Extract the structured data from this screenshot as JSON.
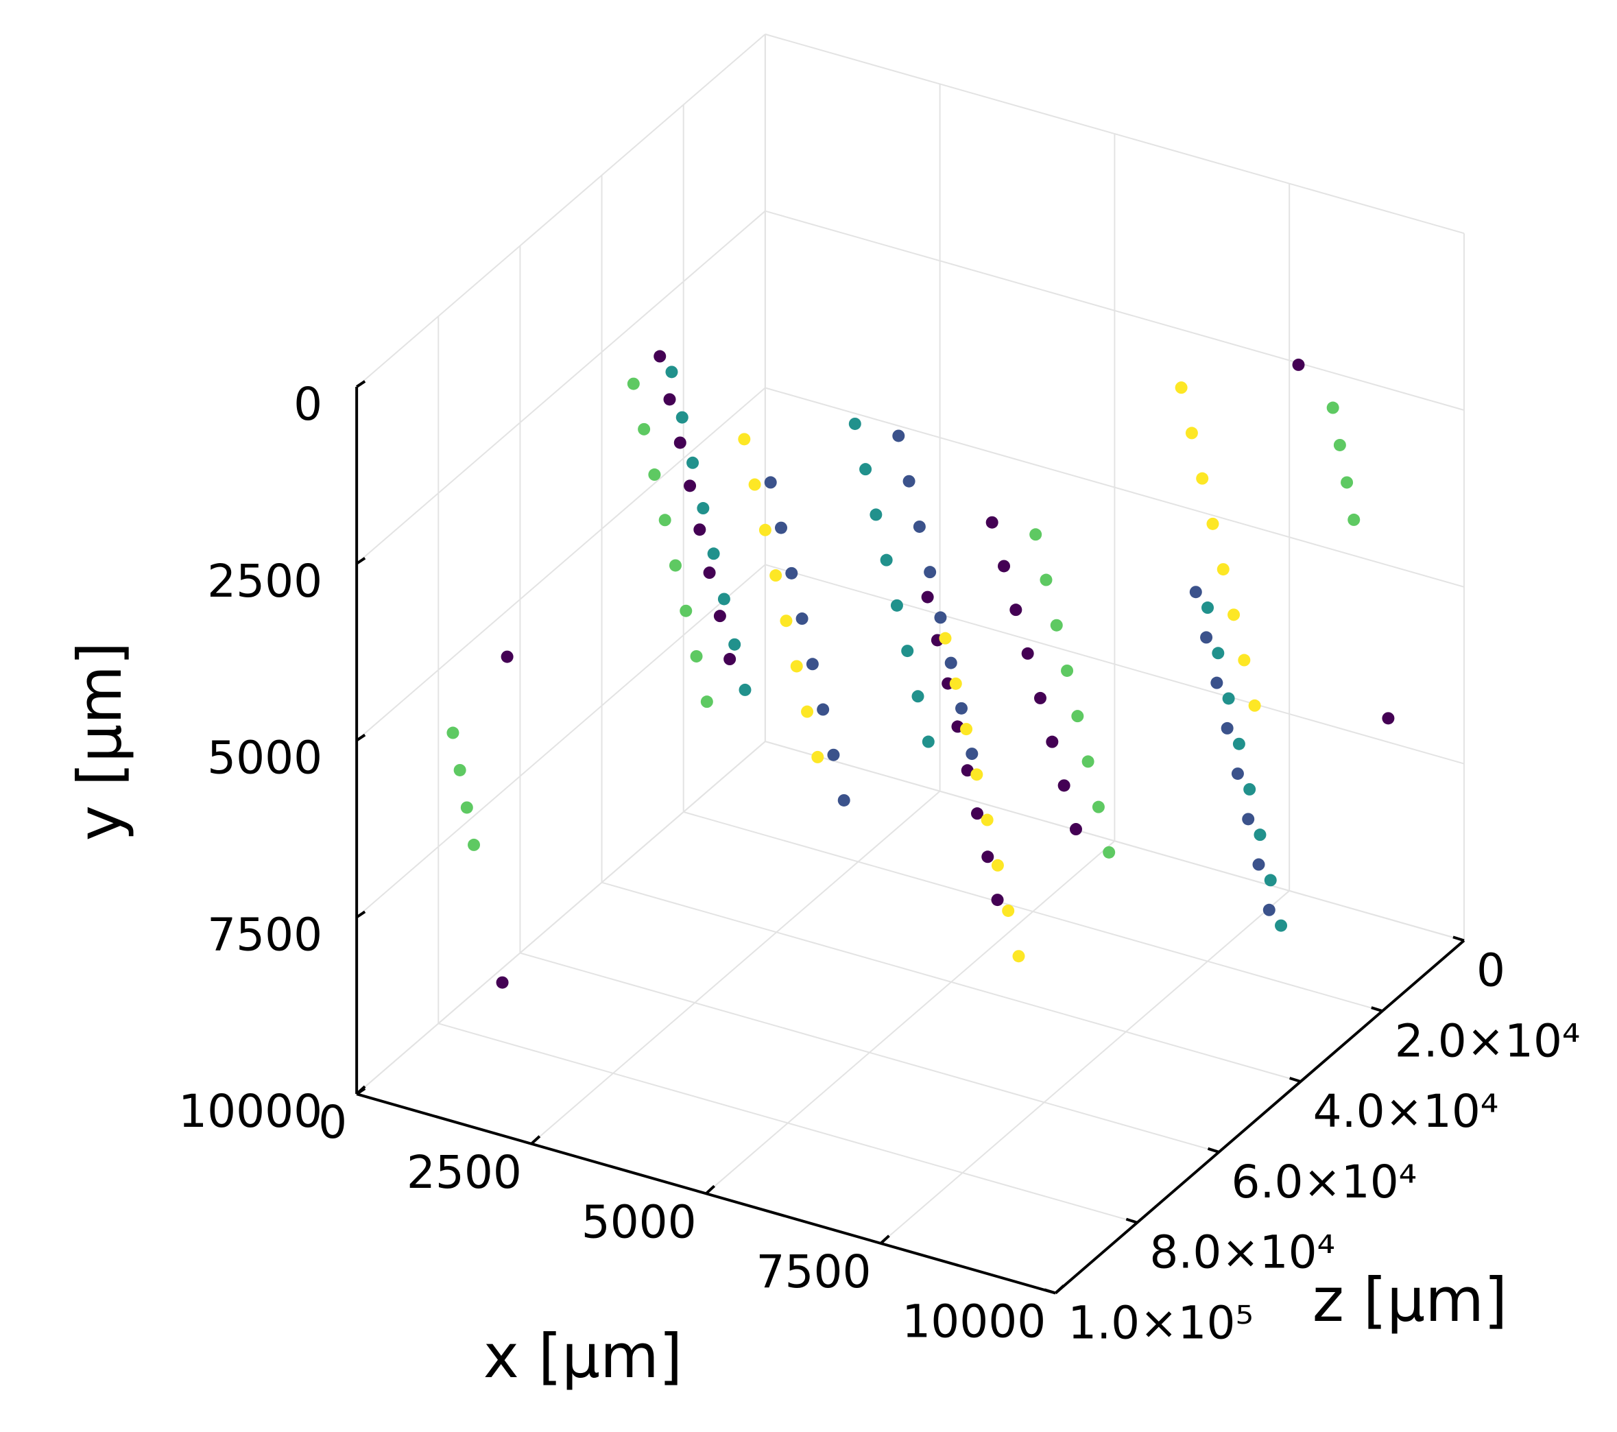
{
  "chart_data": {
    "type": "scatter3d",
    "xlabel": "x [μm]",
    "ylabel": "y [μm]",
    "zlabel": "z [μm]",
    "xlim": [
      0,
      10000
    ],
    "ylim": [
      0,
      10000
    ],
    "zlim": [
      0,
      100000
    ],
    "yflip": true,
    "grid": true,
    "xticks": [
      0,
      2500,
      5000,
      7500,
      10000
    ],
    "yticks": [
      0,
      2500,
      5000,
      7500,
      10000
    ],
    "zticks": [
      0,
      {
        "value": 20000,
        "label": "2.0×10⁴"
      },
      {
        "value": 40000,
        "label": "4.0×10⁴"
      },
      {
        "value": 60000,
        "label": "6.0×10⁴"
      },
      {
        "value": 80000,
        "label": "8.0×10⁴"
      },
      {
        "value": 100000,
        "label": "1.0×10⁵"
      }
    ],
    "series": [
      {
        "color": "#440154",
        "x": [
          2000,
          2140,
          2290,
          2430,
          2570,
          2710,
          2860,
          3000,
          5000,
          5170,
          5340,
          5510,
          5690,
          5860,
          6030,
          6200,
          7000,
          7140,
          7290,
          7430,
          7570,
          7710,
          7860,
          8000,
          1500,
          8800,
          9500,
          400
        ],
        "y": [
          1000,
          1570,
          2140,
          2710,
          3290,
          3860,
          4430,
          5000,
          4000,
          4570,
          5140,
          5710,
          6290,
          6860,
          7430,
          8000,
          2000,
          2570,
          3140,
          3710,
          4290,
          4860,
          5430,
          6000,
          8500,
          1200,
          6500,
          5200
        ],
        "z": [
          60000,
          60000,
          60000,
          60000,
          60000,
          60000,
          60000,
          60000,
          30000,
          30000,
          30000,
          30000,
          30000,
          30000,
          30000,
          30000,
          80000,
          80000,
          80000,
          80000,
          80000,
          80000,
          80000,
          80000,
          90000,
          20000,
          10000,
          70000
        ]
      },
      {
        "color": "#3b528b",
        "x": [
          3000,
          3150,
          3300,
          3450,
          3600,
          3750,
          3900,
          4050,
          6000,
          6150,
          6300,
          6450,
          6600,
          6750,
          6900,
          7050,
          8500,
          8650,
          8800,
          8950,
          9100,
          9250,
          9400,
          9550
        ],
        "y": [
          3000,
          3600,
          4200,
          4800,
          5400,
          6000,
          6600,
          7200,
          500,
          1100,
          1700,
          2300,
          2900,
          3500,
          4100,
          4700,
          3500,
          4100,
          4700,
          5300,
          5900,
          6500,
          7100,
          7700
        ],
        "z": [
          50000,
          50000,
          50000,
          50000,
          50000,
          50000,
          50000,
          50000,
          70000,
          70000,
          70000,
          70000,
          70000,
          70000,
          70000,
          70000,
          40000,
          40000,
          40000,
          40000,
          40000,
          40000,
          40000,
          40000
        ]
      },
      {
        "color": "#21918c",
        "x": [
          1000,
          1150,
          1300,
          1450,
          1600,
          1750,
          1900,
          2050,
          4500,
          4650,
          4800,
          4950,
          5100,
          5250,
          5400,
          5550,
          7500,
          7650,
          7800,
          7950,
          8100,
          8250,
          8400,
          8550
        ],
        "y": [
          2500,
          3100,
          3700,
          4300,
          4900,
          5500,
          6100,
          6700,
          1500,
          2100,
          2700,
          3300,
          3900,
          4500,
          5100,
          5700,
          5000,
          5600,
          6200,
          6800,
          7400,
          8000,
          8600,
          9200
        ],
        "z": [
          40000,
          40000,
          40000,
          40000,
          40000,
          40000,
          40000,
          40000,
          55000,
          55000,
          55000,
          55000,
          55000,
          55000,
          55000,
          55000,
          20000,
          20000,
          20000,
          20000,
          20000,
          20000,
          20000,
          20000
        ]
      },
      {
        "color": "#5ec962",
        "x": [
          2500,
          2650,
          2800,
          2950,
          3100,
          3250,
          3400,
          3550,
          6500,
          6650,
          6800,
          6950,
          7100,
          7250,
          7400,
          7550,
          500,
          600,
          700,
          800,
          9000,
          9100,
          9200,
          9300
        ],
        "y": [
          500,
          1100,
          1700,
          2300,
          2900,
          3500,
          4100,
          4700,
          3000,
          3600,
          4200,
          4800,
          5400,
          6000,
          6600,
          7200,
          5500,
          6000,
          6500,
          7000,
          2000,
          2500,
          3000,
          3500
        ],
        "z": [
          75000,
          75000,
          75000,
          75000,
          75000,
          75000,
          75000,
          75000,
          45000,
          45000,
          45000,
          45000,
          45000,
          45000,
          45000,
          45000,
          85000,
          85000,
          85000,
          85000,
          15000,
          15000,
          15000,
          15000
        ]
      },
      {
        "color": "#fde725",
        "x": [
          3500,
          3650,
          3800,
          3950,
          4100,
          4250,
          4400,
          4550,
          5500,
          5650,
          5800,
          5950,
          6100,
          6250,
          6400,
          6550,
          8000,
          8150,
          8300,
          8450,
          8600,
          8750,
          8900,
          9050
        ],
        "y": [
          1500,
          2100,
          2700,
          3300,
          3900,
          4500,
          5100,
          5700,
          4500,
          5100,
          5700,
          6300,
          6900,
          7500,
          8100,
          8700,
          1000,
          1600,
          2200,
          2800,
          3400,
          4000,
          4600,
          5200
        ],
        "z": [
          65000,
          65000,
          65000,
          65000,
          65000,
          65000,
          65000,
          65000,
          50000,
          50000,
          50000,
          50000,
          50000,
          50000,
          50000,
          50000,
          35000,
          35000,
          35000,
          35000,
          35000,
          35000,
          35000,
          35000
        ]
      }
    ]
  }
}
